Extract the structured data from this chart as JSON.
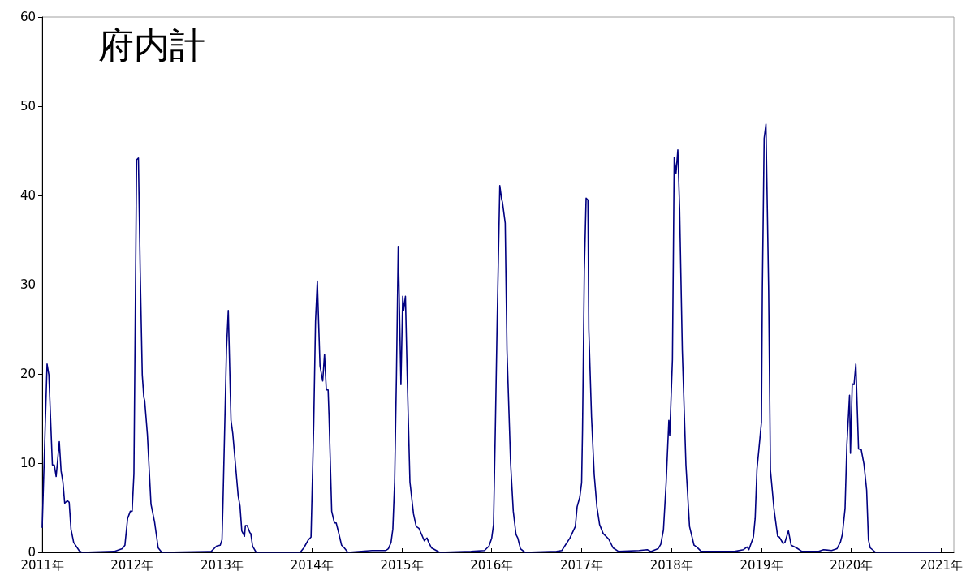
{
  "chart_data": {
    "type": "line",
    "title": "府内計",
    "x": [
      2011.0,
      2011.054,
      2011.074,
      2011.113,
      2011.134,
      2011.155,
      2011.19,
      2011.21,
      2011.23,
      2011.25,
      2011.28,
      2011.3,
      2011.32,
      2011.35,
      2011.41,
      2011.44,
      2011.8,
      2011.89,
      2011.92,
      2011.95,
      2011.98,
      2012.0,
      2012.02,
      2012.05,
      2012.07,
      2012.09,
      2012.113,
      2012.13,
      2012.14,
      2012.17,
      2012.21,
      2012.25,
      2012.29,
      2012.33,
      2012.88,
      2012.94,
      2012.98,
      2013.0,
      2013.01,
      2013.05,
      2013.07,
      2013.1,
      2013.12,
      2013.18,
      2013.2,
      2013.22,
      2013.25,
      2013.26,
      2013.28,
      2013.31,
      2013.32,
      2013.34,
      2013.38,
      2013.87,
      2013.91,
      2013.96,
      2013.99,
      2014.02,
      2014.04,
      2014.06,
      2014.09,
      2014.12,
      2014.14,
      2014.16,
      2014.18,
      2014.19,
      2014.22,
      2014.25,
      2014.27,
      2014.29,
      2014.33,
      2014.36,
      2014.4,
      2014.67,
      2014.82,
      2014.85,
      2014.88,
      2014.9,
      2014.92,
      2014.94,
      2014.96,
      2014.99,
      2015.01,
      2015.02,
      2015.04,
      2015.06,
      2015.09,
      2015.13,
      2015.16,
      2015.19,
      2015.22,
      2015.25,
      2015.28,
      2015.3,
      2015.33,
      2015.42,
      2015.77,
      2015.92,
      2015.97,
      2016.0,
      2016.02,
      2016.04,
      2016.06,
      2016.09,
      2016.11,
      2016.12,
      2016.15,
      2016.17,
      2016.21,
      2016.24,
      2016.27,
      2016.29,
      2016.32,
      2016.37,
      2016.72,
      2016.78,
      2016.87,
      2016.93,
      2016.95,
      2016.98,
      2017.0,
      2017.01,
      2017.03,
      2017.05,
      2017.07,
      2017.08,
      2017.11,
      2017.14,
      2017.17,
      2017.2,
      2017.24,
      2017.3,
      2017.35,
      2017.41,
      2017.64,
      2017.73,
      2017.77,
      2017.85,
      2017.88,
      2017.91,
      2017.94,
      2017.97,
      2017.98,
      2018.01,
      2018.03,
      2018.05,
      2018.07,
      2018.09,
      2018.12,
      2018.16,
      2018.2,
      2018.25,
      2018.28,
      2018.33,
      2018.7,
      2018.8,
      2018.84,
      2018.86,
      2018.91,
      2018.93,
      2018.95,
      2018.97,
      2019.0,
      2019.01,
      2019.03,
      2019.05,
      2019.08,
      2019.1,
      2019.14,
      2019.18,
      2019.2,
      2019.24,
      2019.26,
      2019.3,
      2019.33,
      2019.39,
      2019.45,
      2019.63,
      2019.69,
      2019.78,
      2019.84,
      2019.88,
      2019.9,
      2019.93,
      2019.95,
      2019.98,
      2019.99,
      2020.01,
      2020.03,
      2020.05,
      2020.08,
      2020.11,
      2020.14,
      2020.17,
      2020.19,
      2020.21,
      2020.27,
      2020.98
    ],
    "series": [
      {
        "color": "#000080",
        "values": [
          2.8,
          21.1,
          19.9,
          9.8,
          9.8,
          8.5,
          12.4,
          9.1,
          7.9,
          5.5,
          5.8,
          5.6,
          2.6,
          1.1,
          0.2,
          0,
          0.1,
          0.4,
          0.8,
          3.8,
          4.6,
          4.6,
          8.8,
          44.0,
          44.2,
          31.6,
          19.9,
          17.4,
          17.0,
          13.2,
          5.4,
          3.4,
          0.5,
          0,
          0.1,
          0.7,
          0.8,
          1.4,
          5.2,
          22.8,
          27.1,
          14.8,
          13.3,
          6.3,
          5.2,
          2.4,
          1.8,
          3.0,
          3.0,
          2.2,
          2.1,
          0.7,
          0,
          0,
          0.5,
          1.4,
          1.7,
          14.4,
          25.9,
          30.4,
          20.9,
          19.2,
          22.2,
          18.2,
          18.2,
          15.3,
          4.6,
          3.3,
          3.3,
          2.5,
          0.8,
          0.5,
          0,
          0.2,
          0.2,
          0.4,
          1.1,
          2.6,
          7.9,
          19.7,
          34.3,
          18.8,
          28.7,
          27.1,
          28.7,
          19.7,
          7.9,
          4.3,
          2.9,
          2.7,
          2.0,
          1.3,
          1.6,
          1.1,
          0.5,
          0,
          0.1,
          0.2,
          0.7,
          1.6,
          3.1,
          13.7,
          25.6,
          41.1,
          39.6,
          39.2,
          36.9,
          22.6,
          10.0,
          4.6,
          2.0,
          1.6,
          0.4,
          0,
          0.1,
          0.2,
          1.6,
          2.9,
          5.1,
          6.2,
          7.8,
          13.8,
          31.5,
          39.7,
          39.5,
          25.0,
          15.2,
          8.7,
          5.1,
          3.1,
          2.1,
          1.5,
          0.5,
          0.1,
          0.2,
          0.3,
          0.1,
          0.4,
          0.9,
          2.5,
          7.8,
          14.8,
          13.1,
          21.6,
          44.3,
          42.5,
          45.1,
          38.5,
          22.6,
          9.8,
          2.9,
          0.8,
          0.6,
          0.1,
          0.1,
          0.3,
          0.6,
          0.3,
          1.7,
          3.8,
          9.3,
          11.4,
          14.6,
          29.4,
          46.4,
          48.0,
          29.4,
          9.2,
          4.8,
          1.8,
          1.7,
          1.0,
          1.1,
          2.4,
          0.8,
          0.5,
          0.1,
          0.1,
          0.3,
          0.2,
          0.4,
          1.2,
          2.0,
          4.9,
          12.0,
          17.6,
          11.1,
          18.9,
          18.8,
          21.1,
          11.6,
          11.5,
          9.9,
          7.0,
          1.4,
          0.5,
          0,
          0
        ]
      }
    ],
    "xlim": [
      2011,
      2021.14
    ],
    "xticks": [
      {
        "value": 2011,
        "label": "2011年"
      },
      {
        "value": 2012,
        "label": "2012年"
      },
      {
        "value": 2013,
        "label": "2013年"
      },
      {
        "value": 2014,
        "label": "2014年"
      },
      {
        "value": 2015,
        "label": "2015年"
      },
      {
        "value": 2016,
        "label": "2016年"
      },
      {
        "value": 2017,
        "label": "2017年"
      },
      {
        "value": 2018,
        "label": "2018年"
      },
      {
        "value": 2019,
        "label": "2019年"
      },
      {
        "value": 2020,
        "label": "2020年"
      },
      {
        "value": 2021,
        "label": "2021年"
      }
    ],
    "ylim": [
      0,
      60
    ],
    "yticks": [
      0,
      10,
      20,
      30,
      40,
      50,
      60
    ],
    "grid": false,
    "marker": "none",
    "line_style": "solid"
  }
}
